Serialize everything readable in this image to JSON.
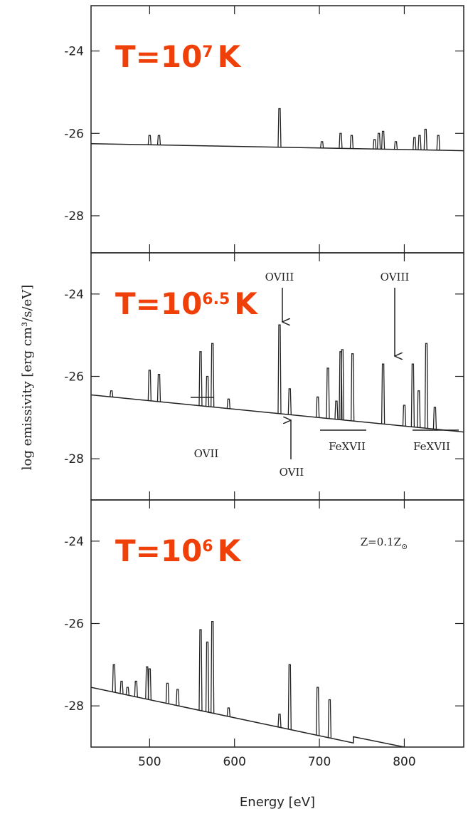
{
  "chart_data": [
    {
      "type": "line",
      "title": "T=10",
      "title_exponent": "7",
      "title_unit": "K",
      "xlim": [
        431,
        870
      ],
      "ylim": [
        -28.9,
        -22.9
      ],
      "xticks": [
        500,
        600,
        700,
        800
      ],
      "yticks": [
        -24,
        -26,
        -28
      ],
      "color": "#222222",
      "continuum": {
        "x": [
          431,
          870
        ],
        "values": [
          -26.25,
          -26.42
        ]
      },
      "emission_lines": {
        "x": [
          500,
          511,
          653,
          703,
          725,
          738,
          765,
          770,
          775,
          790,
          812,
          818,
          825,
          840
        ],
        "values": [
          -26.05,
          -26.05,
          -25.4,
          -26.2,
          -26.0,
          -26.05,
          -26.15,
          -26.0,
          -25.95,
          -26.2,
          -26.1,
          -26.05,
          -25.9,
          -26.05
        ]
      }
    },
    {
      "type": "line",
      "title": "T=10",
      "title_exponent": "6.5",
      "title_unit": "K",
      "ylabel": "log emissivity [erg cm³/s/eV]",
      "xlim": [
        431,
        870
      ],
      "ylim": [
        -29,
        -23
      ],
      "xticks": [
        500,
        600,
        700,
        800
      ],
      "yticks": [
        -24,
        -26,
        -28
      ],
      "color": "#222222",
      "continuum": {
        "x": [
          431,
          870
        ],
        "values": [
          -26.45,
          -27.35
        ]
      },
      "emission_lines": {
        "x": [
          455,
          500,
          511,
          560,
          568,
          574,
          593,
          653,
          665,
          698,
          710,
          720,
          725,
          727,
          739,
          775,
          800,
          810,
          817,
          826,
          836
        ],
        "values": [
          -26.35,
          -25.85,
          -25.95,
          -25.4,
          -26.0,
          -25.2,
          -26.55,
          -24.75,
          -26.3,
          -26.5,
          -25.8,
          -26.6,
          -25.4,
          -25.35,
          -25.45,
          -25.7,
          -26.7,
          -25.7,
          -26.35,
          -25.2,
          -26.75
        ]
      },
      "annotations": [
        "OVIII",
        "OVIII",
        "OVII",
        "OVII",
        "FeXVII",
        "FeXVII"
      ]
    },
    {
      "type": "line",
      "title": "T=10",
      "title_exponent": "6",
      "title_unit": "K",
      "note": "Z=0.1Z",
      "note_subscript": "⊙",
      "xlabel": "Energy [eV]",
      "xlim": [
        431,
        870
      ],
      "ylim": [
        -29,
        -23
      ],
      "xticks": [
        500,
        600,
        700,
        800
      ],
      "yticks": [
        -24,
        -26,
        -28
      ],
      "color": "#222222",
      "continuum": {
        "x": [
          431,
          740,
          740,
          800
        ],
        "values": [
          -27.55,
          -28.9,
          -28.75,
          -29.0
        ]
      },
      "emission_lines": {
        "x": [
          458,
          467,
          474,
          484,
          497,
          500,
          521,
          533,
          560,
          568,
          574,
          593,
          653,
          665,
          698,
          712
        ],
        "values": [
          -27.0,
          -27.4,
          -27.55,
          -27.4,
          -27.05,
          -27.1,
          -27.45,
          -27.6,
          -26.15,
          -26.45,
          -25.95,
          -28.05,
          -28.2,
          -27.0,
          -27.55,
          -27.85
        ]
      }
    }
  ]
}
